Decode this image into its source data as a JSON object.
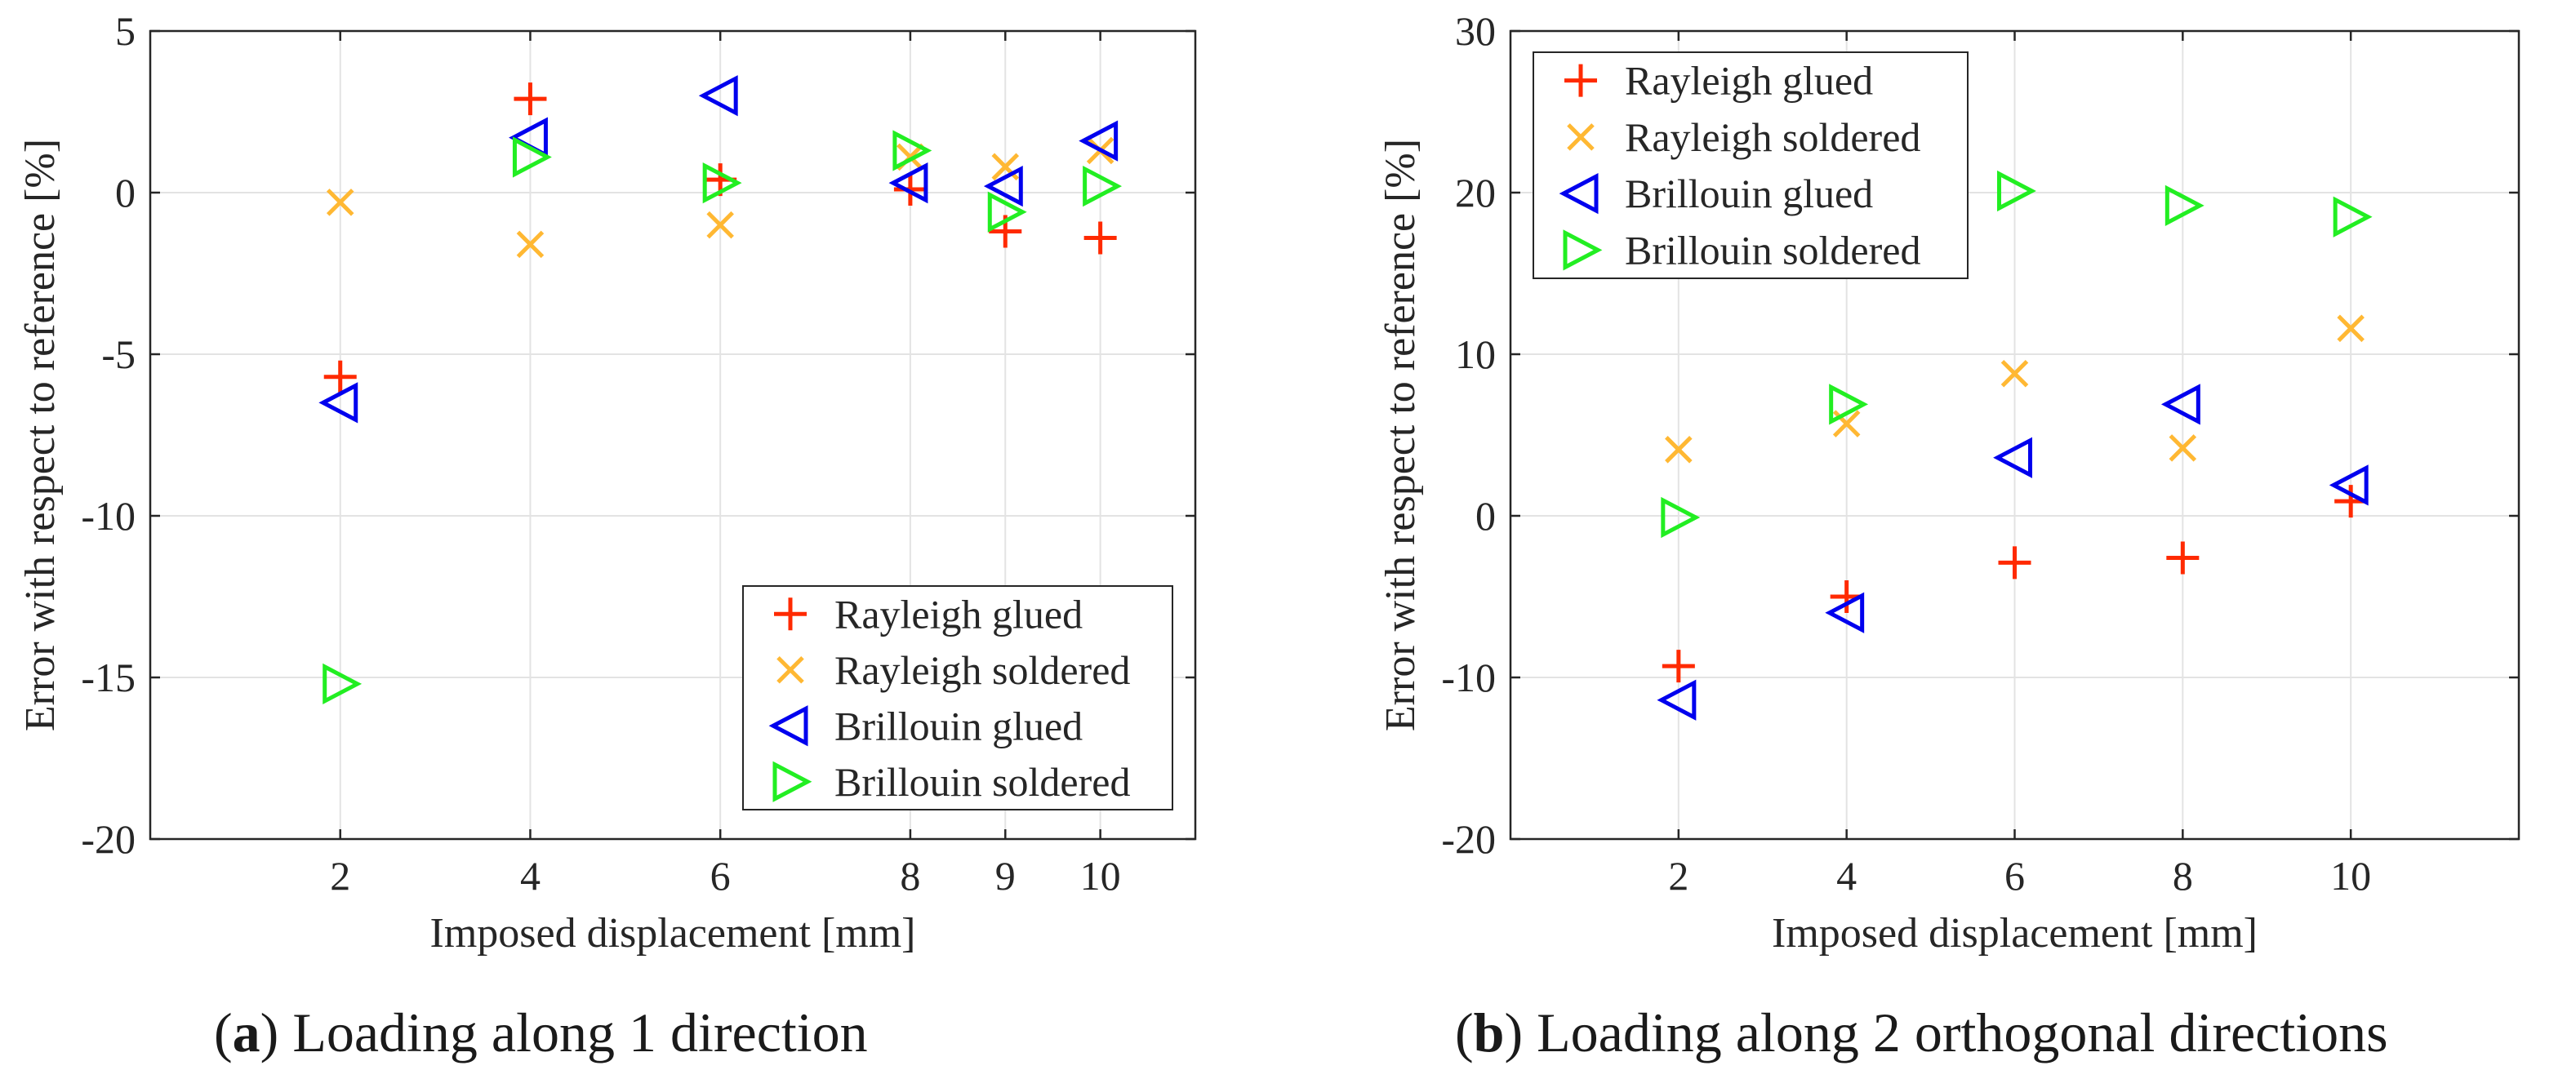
{
  "chart_data": [
    {
      "type": "scatter",
      "caption_label": "a",
      "caption_text": "Loading along 1 direction",
      "xlabel": "Imposed displacement [mm]",
      "ylabel": "Error with respect to reference [%]",
      "xlim": [
        0,
        11
      ],
      "ylim": [
        -20,
        5
      ],
      "xticks": [
        2,
        4,
        6,
        8,
        9,
        10
      ],
      "yticks": [
        5,
        0,
        -5,
        -10,
        -15,
        -20
      ],
      "ytick_labels": [
        "5",
        "0",
        "-5",
        "-10",
        "-15",
        "-20"
      ],
      "grid": true,
      "legend_position": "bottom-right",
      "series": [
        {
          "name": "Rayleigh glued",
          "marker": "plus",
          "color": "#ff2a00",
          "x": [
            2,
            4,
            6,
            8,
            9,
            10
          ],
          "y": [
            -5.7,
            2.9,
            0.4,
            0.1,
            -1.2,
            -1.4
          ]
        },
        {
          "name": "Rayleigh soldered",
          "marker": "cross",
          "color": "#ffb833",
          "x": [
            2,
            4,
            6,
            8,
            9,
            10
          ],
          "y": [
            -0.3,
            -1.6,
            -1.0,
            1.1,
            0.8,
            1.3
          ]
        },
        {
          "name": "Brillouin glued",
          "marker": "triangle-left",
          "color": "#0000ee",
          "x": [
            2,
            4,
            6,
            8,
            9,
            10
          ],
          "y": [
            -6.5,
            1.7,
            3.0,
            0.3,
            0.2,
            1.6
          ]
        },
        {
          "name": "Brillouin soldered",
          "marker": "triangle-right",
          "color": "#22ee22",
          "x": [
            2,
            4,
            6,
            8,
            9,
            10
          ],
          "y": [
            -15.2,
            1.1,
            0.3,
            1.3,
            -0.6,
            0.2
          ]
        }
      ]
    },
    {
      "type": "scatter",
      "caption_label": "b",
      "caption_text": "Loading along 2 orthogonal directions",
      "xlabel": "Imposed displacement [mm]",
      "ylabel": "Error with respect to reference [%]",
      "xlim": [
        0,
        12
      ],
      "ylim": [
        -20,
        30
      ],
      "xticks": [
        2,
        4,
        6,
        8,
        10
      ],
      "yticks": [
        30,
        20,
        10,
        0,
        -10,
        -20
      ],
      "ytick_labels": [
        "30",
        "20",
        "10",
        "0",
        "-10",
        "-20"
      ],
      "grid": true,
      "legend_position": "top-left",
      "series": [
        {
          "name": "Rayleigh glued",
          "marker": "plus",
          "color": "#ff2a00",
          "x": [
            2,
            4,
            6,
            8,
            10
          ],
          "y": [
            -9.3,
            -5.0,
            -2.9,
            -2.6,
            0.9
          ]
        },
        {
          "name": "Rayleigh soldered",
          "marker": "cross",
          "color": "#ffb833",
          "x": [
            2,
            4,
            6,
            8,
            10
          ],
          "y": [
            4.1,
            5.7,
            8.8,
            4.2,
            11.6
          ]
        },
        {
          "name": "Brillouin glued",
          "marker": "triangle-left",
          "color": "#0000ee",
          "x": [
            2,
            4,
            6,
            8,
            10
          ],
          "y": [
            -11.4,
            -6.0,
            3.6,
            6.9,
            1.9
          ]
        },
        {
          "name": "Brillouin soldered",
          "marker": "triangle-right",
          "color": "#22ee22",
          "x": [
            2,
            4,
            6,
            8,
            10
          ],
          "y": [
            -0.1,
            6.9,
            20.1,
            19.2,
            18.5
          ]
        }
      ]
    }
  ]
}
